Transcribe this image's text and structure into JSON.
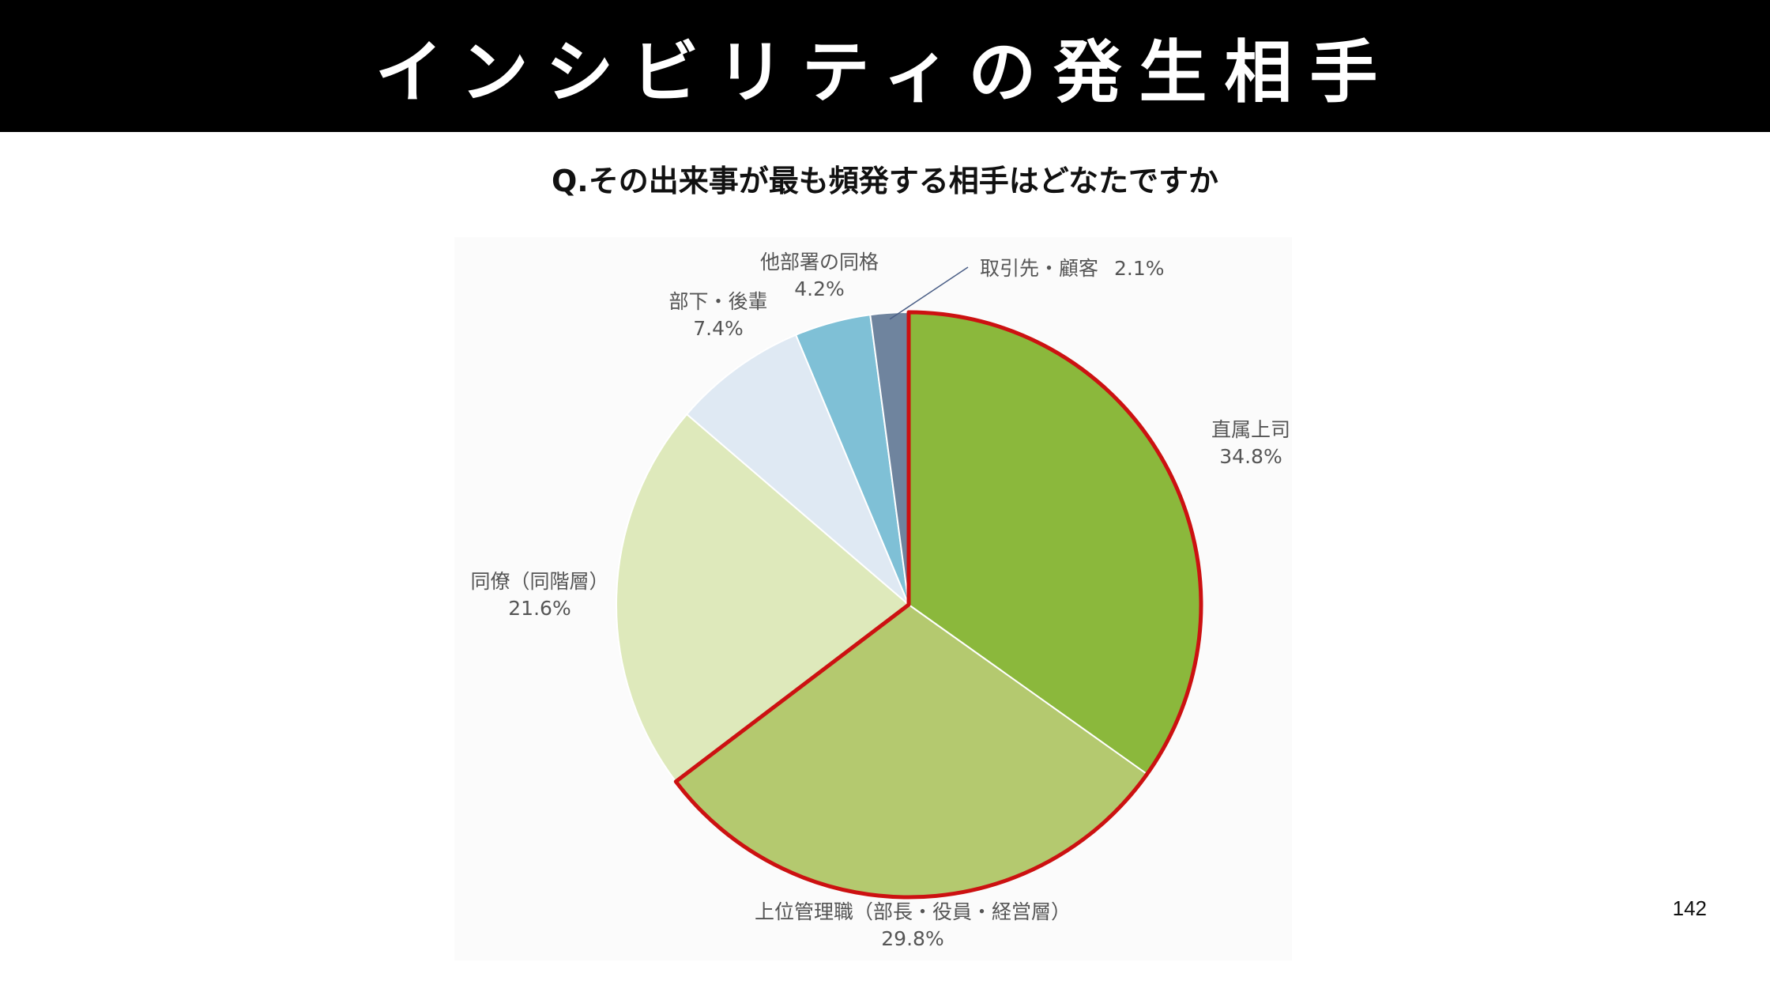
{
  "slide": {
    "title": "インシビリティの発生相手",
    "question": "Q.その出来事が最も頻発する相手はどなたですか",
    "page_number": "142"
  },
  "colors": {
    "highlight_border": "#cc1111",
    "background": "#ffffff",
    "title_bar": "#000000"
  },
  "chart_data": {
    "type": "pie",
    "slices": [
      {
        "label": "直属上司",
        "value": 34.8,
        "value_label": "34.8%",
        "color": "#8bb83c",
        "highlighted": true
      },
      {
        "label": "上位管理職（部長・役員・経営層）",
        "value": 29.8,
        "value_label": "29.8%",
        "color": "#b4c96f",
        "highlighted": true
      },
      {
        "label": "同僚（同階層）",
        "value": 21.6,
        "value_label": "21.6%",
        "color": "#dee9bb",
        "highlighted": false
      },
      {
        "label": "部下・後輩",
        "value": 7.4,
        "value_label": "7.4%",
        "color": "#dfe9f3",
        "highlighted": false
      },
      {
        "label": "他部署の同格",
        "value": 4.2,
        "value_label": "4.2%",
        "color": "#7fc0d6",
        "highlighted": false
      },
      {
        "label": "取引先・顧客",
        "value": 2.1,
        "value_label": "2.1%",
        "color": "#6f849e",
        "highlighted": false
      }
    ],
    "start": "12 o'clock",
    "direction": "clockwise"
  }
}
